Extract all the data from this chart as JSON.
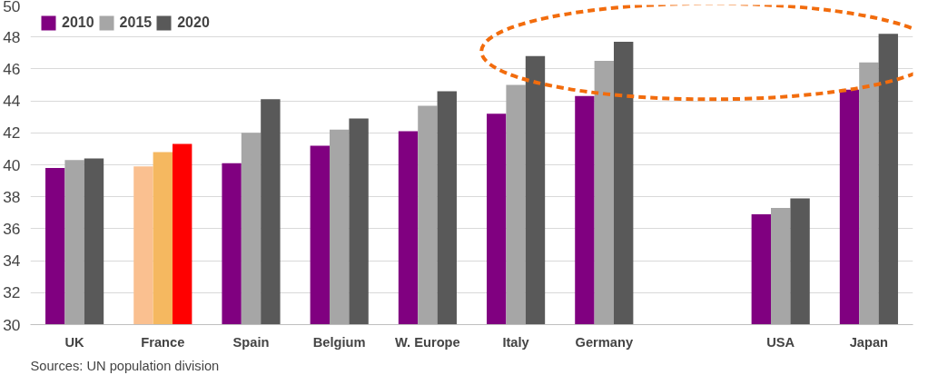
{
  "chart_data": {
    "type": "bar",
    "categories": [
      "UK",
      "France",
      "Spain",
      "Belgium",
      "W. Europe",
      "Italy",
      "Germany",
      null,
      "USA",
      "Japan"
    ],
    "series": [
      {
        "name": "2010",
        "color": "#800080",
        "colors": [
          "#800080",
          "#fac090",
          "#800080",
          "#800080",
          "#800080",
          "#800080",
          "#800080",
          "#800080",
          "#800080",
          "#800080"
        ],
        "values": [
          39.8,
          39.9,
          40.1,
          41.2,
          42.1,
          43.2,
          44.3,
          null,
          36.9,
          44.7
        ]
      },
      {
        "name": "2015",
        "color": "#a6a6a6",
        "colors": [
          "#a6a6a6",
          "#f5b860",
          "#a6a6a6",
          "#a6a6a6",
          "#a6a6a6",
          "#a6a6a6",
          "#a6a6a6",
          "#a6a6a6",
          "#a6a6a6",
          "#a6a6a6"
        ],
        "values": [
          40.3,
          40.8,
          42.0,
          42.2,
          43.7,
          45.0,
          46.5,
          null,
          37.3,
          46.4
        ]
      },
      {
        "name": "2020",
        "color": "#595959",
        "colors": [
          "#595959",
          "#ff0000",
          "#595959",
          "#595959",
          "#595959",
          "#595959",
          "#595959",
          "#595959",
          "#595959",
          "#595959"
        ],
        "values": [
          40.4,
          41.3,
          44.1,
          42.9,
          44.6,
          46.8,
          47.7,
          null,
          37.9,
          48.2
        ]
      }
    ],
    "ylim": [
      30,
      50
    ],
    "yticks": [
      30,
      32,
      34,
      36,
      38,
      40,
      42,
      44,
      46,
      48,
      50
    ],
    "grid": "y",
    "legend": "top left",
    "annotations": [
      "Sources: UN population division"
    ]
  }
}
